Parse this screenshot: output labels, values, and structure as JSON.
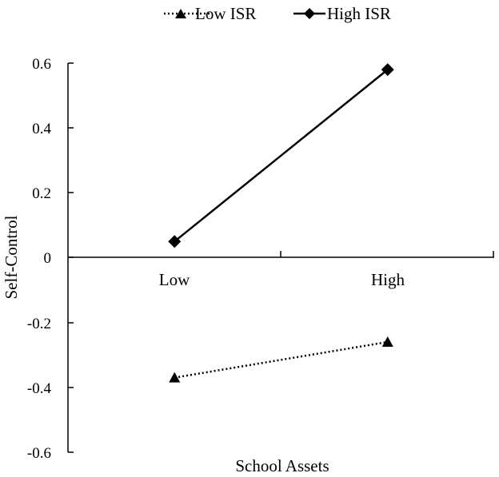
{
  "chart_data": {
    "type": "line",
    "title": "",
    "xlabel": "School Assets",
    "ylabel": "Self-Control",
    "categories": [
      "Low",
      "High"
    ],
    "ylim": [
      -0.6,
      0.6
    ],
    "yticks": [
      0.6,
      0.4,
      0.2,
      0,
      -0.2,
      -0.4,
      -0.6
    ],
    "ytick_labels": [
      "0.6",
      "0.4",
      "0.2",
      "0",
      "-0.2",
      "-0.4",
      "-0.6"
    ],
    "grid": false,
    "legend_position": "top",
    "series": [
      {
        "name": "Low ISR",
        "values": [
          -0.37,
          -0.26
        ],
        "marker": "triangle",
        "line": "dotted",
        "color": "#000000"
      },
      {
        "name": "High ISR",
        "values": [
          0.05,
          0.58
        ],
        "marker": "diamond",
        "line": "solid",
        "color": "#000000"
      }
    ]
  }
}
